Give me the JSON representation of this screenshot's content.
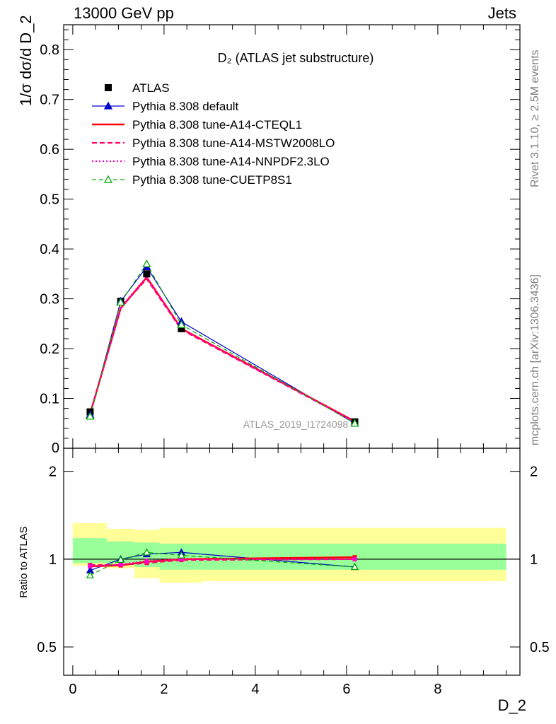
{
  "header": {
    "left": "13000 GeV pp",
    "right": "Jets"
  },
  "side_text": {
    "rivet": "Rivet 3.1.10, ≥ 2.5M events",
    "mcplots": "mcplots.cern.ch [arXiv:1306.3436]"
  },
  "chart_data": [
    {
      "type": "line",
      "title": "D₂ (ATLAS jet substructure)",
      "ylabel": "1/σ dσ/d D_2",
      "xlabel": "D_2",
      "watermark": "ATLAS_2019_I1724098",
      "xlim": [
        -0.2,
        9.8
      ],
      "ylim": [
        0,
        0.85
      ],
      "yticks": [
        0.1,
        0.2,
        0.3,
        0.4,
        0.5,
        0.6,
        0.7,
        0.8
      ],
      "ytick_labels": [
        "0.1",
        "0.2",
        "0.3",
        "0.4",
        "0.5",
        "0.6",
        "0.7",
        "0.8"
      ],
      "legend_position": "top-left",
      "x": [
        0.38,
        1.05,
        1.62,
        2.38,
        6.18
      ],
      "series": [
        {
          "name": "ATLAS",
          "color": "#000000",
          "style": "data-square",
          "values": [
            0.073,
            0.295,
            0.35,
            0.24,
            0.053
          ]
        },
        {
          "name": "Pythia 8.308 default",
          "color": "#0000cc",
          "style": "solid-triangle",
          "values": [
            0.067,
            0.295,
            0.364,
            0.254,
            0.05
          ]
        },
        {
          "name": "Pythia 8.308 tune-A14-CTEQL1",
          "color": "#ff0000",
          "style": "solid",
          "values": [
            0.069,
            0.281,
            0.343,
            0.24,
            0.054
          ]
        },
        {
          "name": "Pythia 8.308 tune-A14-MSTW2008LO",
          "color": "#ff0066",
          "style": "dashed",
          "values": [
            0.07,
            0.282,
            0.34,
            0.238,
            0.053
          ]
        },
        {
          "name": "Pythia 8.308 tune-A14-NNPDF2.3LO",
          "color": "#ff00cc",
          "style": "dotted",
          "values": [
            0.069,
            0.283,
            0.344,
            0.24,
            0.053
          ]
        },
        {
          "name": "Pythia 8.308 tune-CUETP8S1",
          "color": "#00aa00",
          "style": "dashed-open-triangle",
          "values": [
            0.064,
            0.293,
            0.37,
            0.248,
            0.05
          ]
        }
      ]
    },
    {
      "type": "line",
      "ylabel": "Ratio to ATLAS",
      "xlabel": "D_2",
      "xlim": [
        -0.2,
        9.8
      ],
      "ylim_log": [
        0.4,
        2.4
      ],
      "yticks": [
        0.5,
        1,
        2
      ],
      "ytick_labels": [
        "0.5",
        "1",
        "2"
      ],
      "xticks": [
        0,
        2,
        4,
        6,
        8
      ],
      "xtick_labels": [
        "0",
        "2",
        "4",
        "6",
        "8"
      ],
      "bands": {
        "edges": [
          0,
          0.75,
          1.35,
          1.9,
          2.85,
          9.5
        ],
        "yellow": [
          [
            0.95,
            1.33
          ],
          [
            0.93,
            1.27
          ],
          [
            0.86,
            1.26
          ],
          [
            0.83,
            1.28
          ],
          [
            0.84,
            1.28
          ]
        ],
        "green": [
          [
            0.97,
            1.18
          ],
          [
            0.97,
            1.15
          ],
          [
            0.94,
            1.14
          ],
          [
            0.92,
            1.13
          ],
          [
            0.92,
            1.13
          ]
        ]
      },
      "x": [
        0.38,
        1.05,
        1.62,
        2.38,
        6.18
      ],
      "series": [
        {
          "name": "Pythia 8.308 default",
          "color": "#0000cc",
          "values": [
            0.915,
            1.0,
            1.04,
            1.055,
            0.94
          ]
        },
        {
          "name": "Pythia 8.308 tune-A14-CTEQL1",
          "color": "#ff0000",
          "values": [
            0.945,
            0.952,
            0.98,
            1.0,
            1.015
          ]
        },
        {
          "name": "Pythia 8.308 tune-A14-MSTW2008LO",
          "color": "#ff0066",
          "values": [
            0.955,
            0.955,
            0.97,
            0.993,
            1.0
          ]
        },
        {
          "name": "Pythia 8.308 tune-A14-NNPDF2.3LO",
          "color": "#ff00cc",
          "values": [
            0.945,
            0.96,
            0.985,
            1.0,
            1.0
          ]
        },
        {
          "name": "Pythia 8.308 tune-CUETP8S1",
          "color": "#00aa00",
          "values": [
            0.88,
            0.995,
            1.055,
            1.03,
            0.94
          ]
        }
      ]
    }
  ]
}
